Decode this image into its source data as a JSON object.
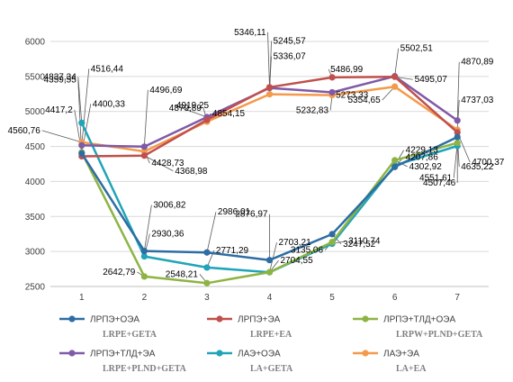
{
  "chart_data": {
    "type": "line",
    "title": "",
    "xlabel": "",
    "ylabel": "",
    "x": [
      1,
      2,
      3,
      4,
      5,
      6,
      7
    ],
    "ylim": [
      2500,
      6000
    ],
    "yticks": [
      2500,
      3000,
      3500,
      4000,
      4500,
      5000,
      5500,
      6000
    ],
    "grid": "horizontal",
    "legend_position": "bottom",
    "series": [
      {
        "name": "ЛРПЭ+ОЭА",
        "subname": "LRPE+GETA",
        "color": "#2E6DA4",
        "values": [
          4400.33,
          3006.82,
          2986.01,
          2876.97,
          3247.52,
          4207.86,
          4635.22
        ],
        "labels": [
          "4400,33",
          "3006,82",
          "2986,01",
          "2876,97",
          "3247,52",
          "4207,86",
          "4635,22"
        ]
      },
      {
        "name": "ЛРПЭ+ЭА",
        "subname": "LRPE+EA",
        "color": "#C0504D",
        "values": [
          4359.55,
          4368.98,
          4879.89,
          5346.11,
          5486.99,
          5495.07,
          4700.37
        ],
        "labels": [
          "4359,55",
          "4368,98",
          "4879,89",
          "5346,11",
          "5486,99",
          "5495,07",
          "4700,37"
        ]
      },
      {
        "name": "ЛРПЭ+ТЛД+ОЭА",
        "subname": "LRPW+PLND+GETA",
        "color": "#8DB443",
        "values": [
          4417.2,
          2642.79,
          2548.21,
          2704.55,
          3135.06,
          4302.92,
          4551.61
        ],
        "labels": [
          "4417,2",
          "2642,79",
          "2548,21",
          "2704,55",
          "3135,06",
          "4302,92",
          "4551,61"
        ]
      },
      {
        "name": "ЛРПЭ+ТЛД+ЭА",
        "subname": "LRPE+PLND+GETA",
        "color": "#7F5AA8",
        "values": [
          4516.44,
          4496.69,
          4919.25,
          5336.07,
          5273.33,
          5502.51,
          4870.89
        ],
        "labels": [
          "4516,44",
          "4496,69",
          "4919,25",
          "5336,07",
          "5273,33",
          "5502,51",
          "4870,89"
        ]
      },
      {
        "name": "ЛАЭ+ОЭА",
        "subname": "LA+GETA",
        "color": "#20A4B8",
        "values": [
          4837.34,
          2930.36,
          2771.29,
          2703.21,
          3110.74,
          4229.13,
          4507.46
        ],
        "labels": [
          "4837,34",
          "2930,36",
          "2771,29",
          "2703,21",
          "3110,74",
          "4229,13",
          "4507,46"
        ]
      },
      {
        "name": "ЛАЭ+ЭА",
        "subname": "LA+EA",
        "color": "#F39A4B",
        "values": [
          4560.76,
          4428.73,
          4854.15,
          5245.57,
          5232.83,
          5354.65,
          4737.03
        ],
        "labels": [
          "4560,76",
          "4428,73",
          "4854,15",
          "5245,57",
          "5232,83",
          "5354,65",
          "4737,03"
        ]
      }
    ]
  }
}
